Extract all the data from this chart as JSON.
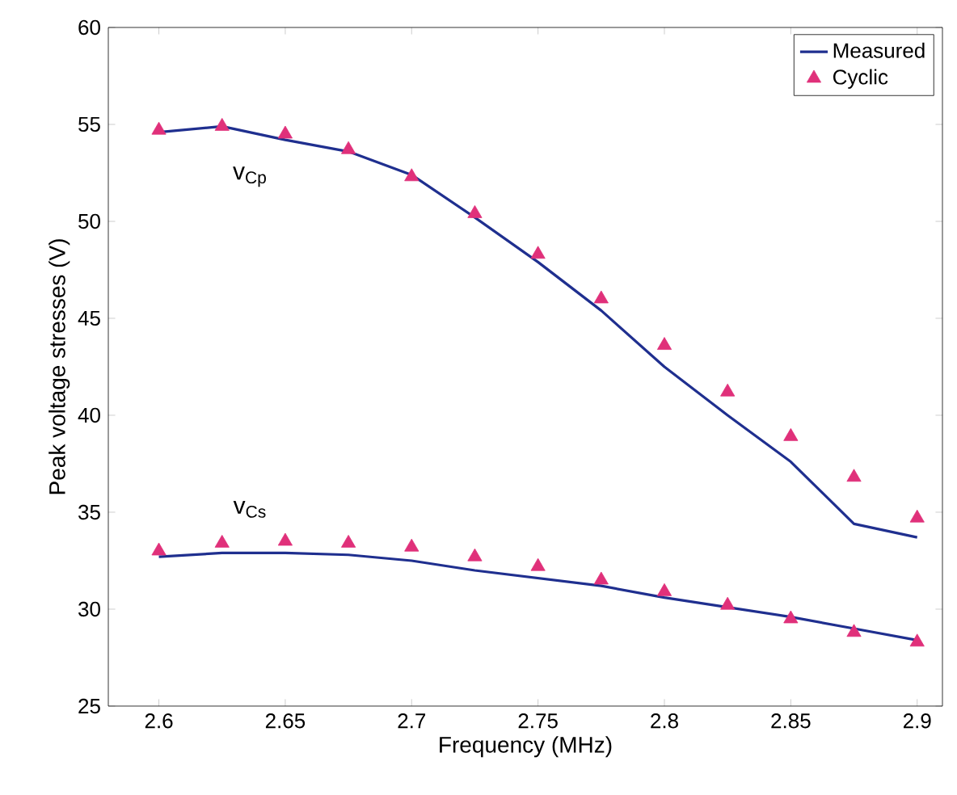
{
  "chart_data": {
    "type": "line",
    "xlabel": "Frequency (MHz)",
    "ylabel": "Peak voltage stresses (V)",
    "x": [
      2.6,
      2.625,
      2.65,
      2.675,
      2.7,
      2.725,
      2.75,
      2.775,
      2.8,
      2.825,
      2.85,
      2.875,
      2.9
    ],
    "series": [
      {
        "name": "Measured",
        "color": "#1f2f8f",
        "marker": "none",
        "line_style": "solid",
        "values": [
          54.6,
          54.9,
          54.2,
          53.6,
          52.4,
          50.2,
          47.9,
          45.4,
          42.5,
          40.0,
          37.6,
          34.4,
          33.7
        ]
      },
      {
        "name": "Cyclic",
        "type": "scatter",
        "color": "#e0307a",
        "marker": "triangle",
        "values": [
          54.7,
          54.9,
          54.5,
          53.7,
          52.3,
          50.4,
          48.3,
          46.0,
          43.6,
          41.2,
          38.9,
          36.8,
          34.7
        ]
      },
      {
        "color": "#1f2f8f",
        "marker": "none",
        "line_style": "solid",
        "values": [
          32.7,
          32.9,
          32.9,
          32.8,
          32.5,
          32.0,
          31.6,
          31.2,
          30.6,
          30.1,
          29.6,
          29.0,
          28.4
        ]
      },
      {
        "type": "scatter",
        "color": "#e0307a",
        "marker": "triangle",
        "values": [
          33.0,
          33.4,
          33.5,
          33.4,
          33.2,
          32.7,
          32.2,
          31.5,
          30.9,
          30.2,
          29.5,
          28.8,
          28.3
        ]
      }
    ],
    "annotations": [
      "v$_{Cp}$",
      "v$_{Cs}$"
    ],
    "xlim": [
      2.58,
      2.91
    ],
    "ylim": [
      25,
      60
    ],
    "xticks": [
      2.6,
      2.65,
      2.7,
      2.75,
      2.8,
      2.85,
      2.9
    ],
    "yticks": [
      25,
      30,
      35,
      40,
      45,
      50,
      55,
      60
    ],
    "grid": false,
    "legend": "top right"
  }
}
